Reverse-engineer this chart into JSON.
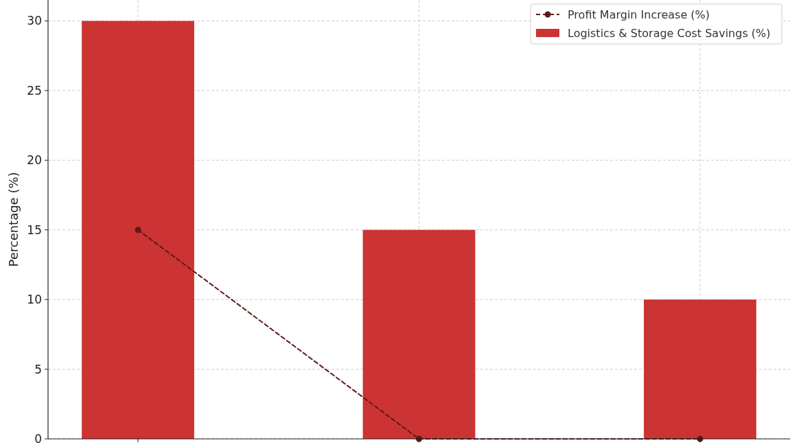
{
  "chart_data": {
    "type": "bar",
    "ylabel": "Percentage (%)",
    "categories": [
      null,
      null,
      null
    ],
    "series": [
      {
        "name": "Logistics & Storage Cost Savings (%)",
        "color": "#cc3333",
        "values": [
          30,
          15,
          10
        ]
      },
      {
        "type": "line",
        "name": "Profit Margin Increase (%)",
        "color": "#5c1a1a",
        "values": [
          15,
          0,
          0
        ],
        "marker": "circle",
        "line_style": "dashed"
      }
    ],
    "ylim": [
      0,
      31.5
    ],
    "yticks": [
      0,
      5,
      10,
      15,
      20,
      25,
      30
    ],
    "grid": true,
    "legend": "top right"
  }
}
